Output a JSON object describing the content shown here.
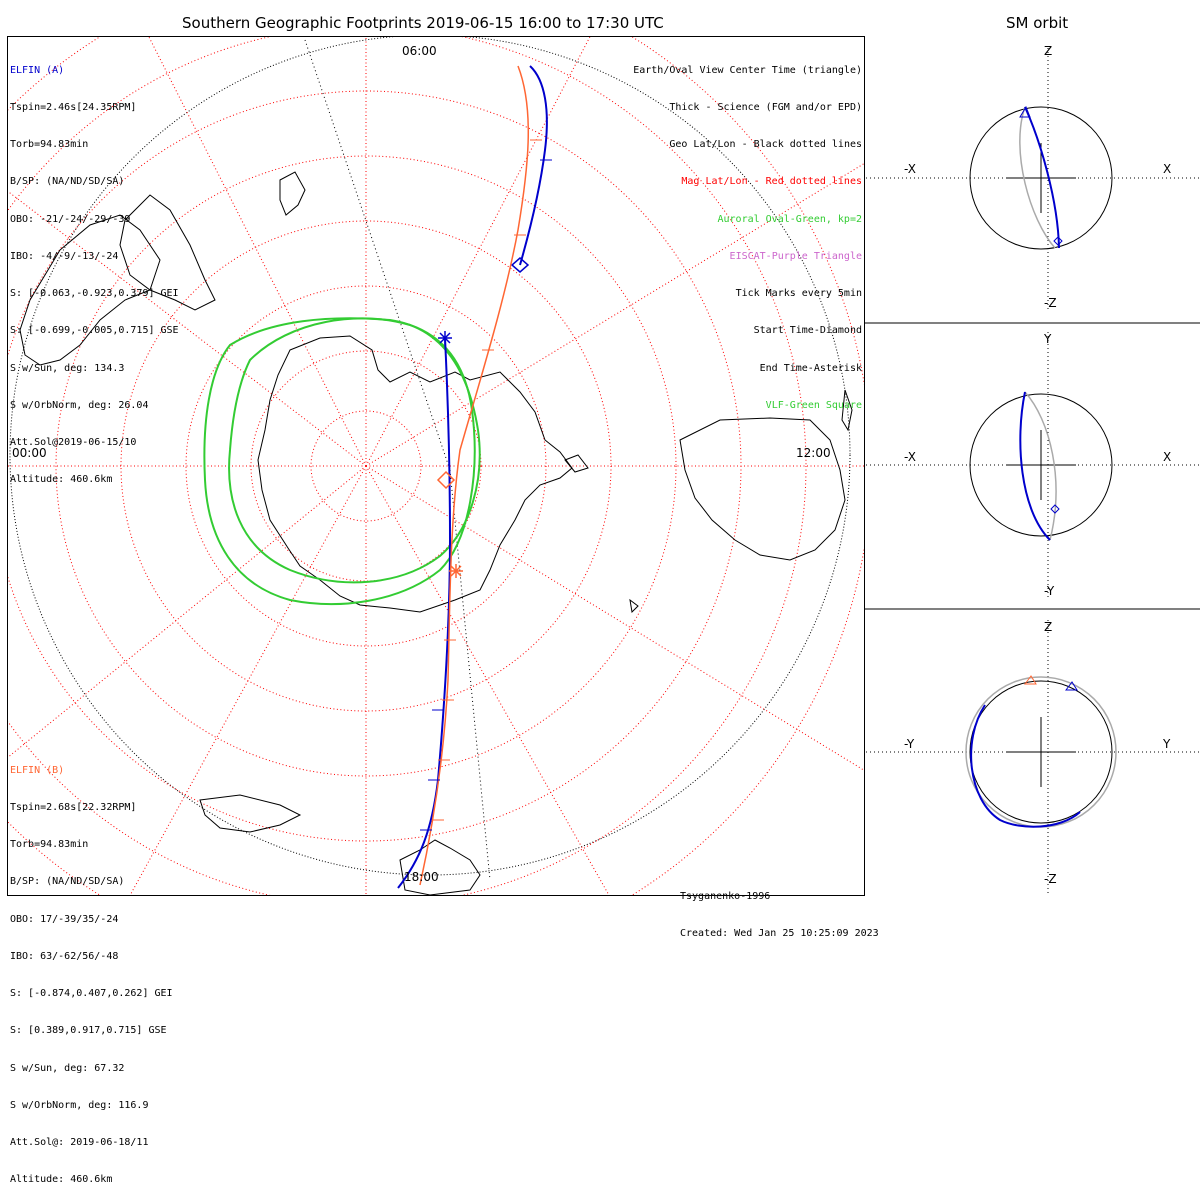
{
  "titles": {
    "main": "Southern Geographic Footprints 2019-06-15 16:00 to 17:30 UTC",
    "side": "SM orbit"
  },
  "time_labels": {
    "top": "06:00",
    "left": "00:00",
    "right": "12:00",
    "bottom": "18:00"
  },
  "elfin_a": {
    "name": "ELFIN (A)",
    "color": "#0000cc",
    "lines": [
      "Tspin=2.46s[24.35RPM]",
      "Torb=94.83min",
      "B/SP: (NA/ND/SD/SA)",
      "OBO: -21/-24/-29/-39",
      "IBO: -4/-9/-13/-24",
      "S: [-0.063,-0.923,0.379] GEI",
      "S: [-0.699,-0.005,0.715] GSE",
      "S w/Sun, deg: 134.3",
      "S w/OrbNorm, deg: 26.04",
      "Att.Sol@2019-06-15/10",
      "Altitude: 460.6km"
    ]
  },
  "elfin_b": {
    "name": "ELFIN (B)",
    "color": "#ff6633",
    "lines": [
      "Tspin=2.68s[22.32RPM]",
      "Torb=94.83min",
      "B/SP: (NA/ND/SD/SA)",
      "OBO: 17/-39/35/-24",
      "IBO: 63/-62/56/-48",
      "S: [-0.874,0.407,0.262] GEI",
      "S: [0.389,0.917,0.715] GSE",
      "S w/Sun, deg: 67.32",
      "S w/OrbNorm, deg: 116.9",
      "Att.Sol@: 2019-06-18/11",
      "Altitude: 460.6km"
    ]
  },
  "legend": [
    {
      "text": "Earth/Oval View Center Time (triangle)",
      "color": "#000000"
    },
    {
      "text": "Thick - Science (FGM and/or EPD)",
      "color": "#000000"
    },
    {
      "text": "Geo Lat/Lon - Black dotted lines",
      "color": "#000000"
    },
    {
      "text": "Mag Lat/Lon - Red dotted lines",
      "color": "#ff0000"
    },
    {
      "text": "Auroral Oval-Green, kp=2",
      "color": "#33cc33"
    },
    {
      "text": "EISCAT-Purple Triangle",
      "color": "#cc66cc"
    },
    {
      "text": "Tick Marks every 5min",
      "color": "#000000"
    },
    {
      "text": "Start Time-Diamond",
      "color": "#000000"
    },
    {
      "text": "End Time-Asterisk",
      "color": "#000000"
    },
    {
      "text": "VLF-Green Square",
      "color": "#33cc33"
    }
  ],
  "credits": {
    "model": "Tsyganenko-1996",
    "created": "Created: Wed Jan 25 10:25:09 2023"
  },
  "sm_panels": [
    {
      "id": "xz",
      "top": "Z",
      "bottom": "-Z",
      "left": "-X",
      "right": "X"
    },
    {
      "id": "xy",
      "top": "Y",
      "bottom": "-Y",
      "left": "-X",
      "right": "X"
    },
    {
      "id": "yz",
      "top": "Z",
      "bottom": "-Z",
      "left": "-Y",
      "right": "Y"
    }
  ],
  "colors": {
    "elfin_a": "#0000cc",
    "elfin_b": "#ff6633",
    "oval": "#33cc33",
    "mag_grid": "#ff0000",
    "geo_grid": "#000000"
  }
}
